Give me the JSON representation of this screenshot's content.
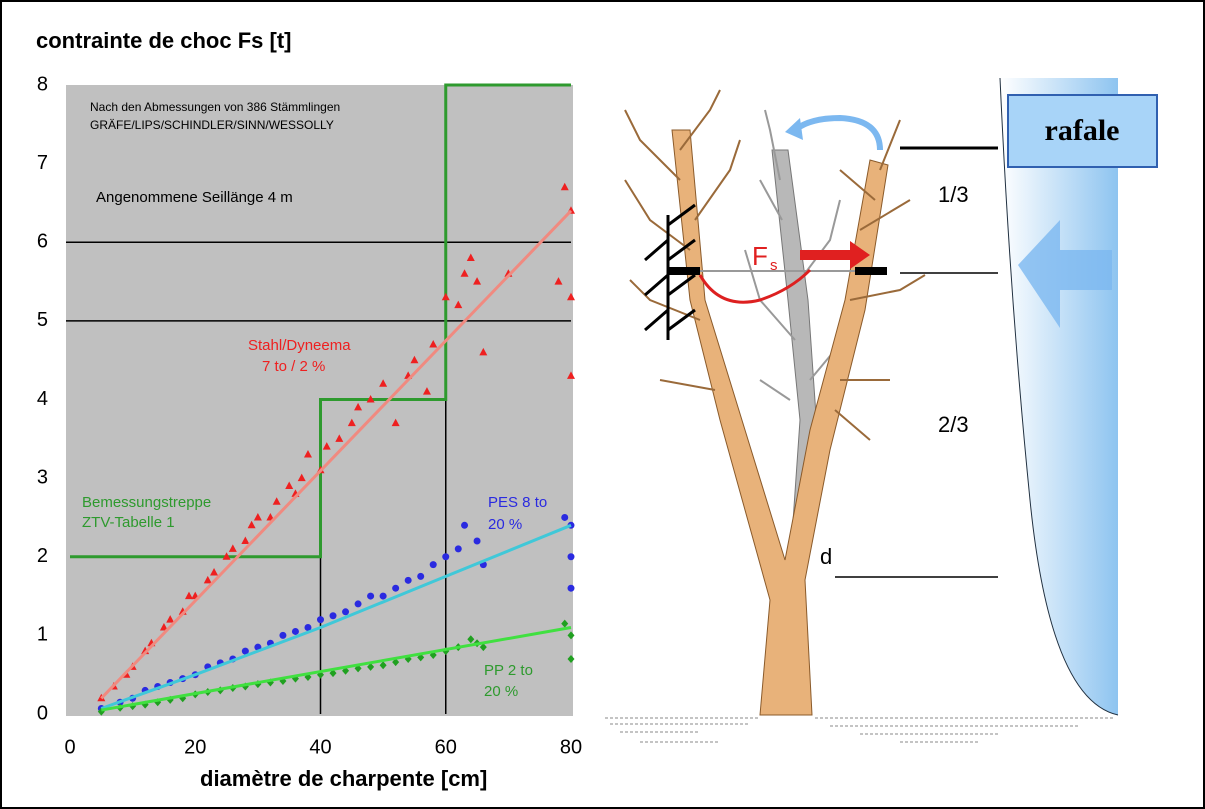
{
  "chart_data": {
    "type": "scatter",
    "title": "contrainte de choc Fs [t]",
    "x_label": "diamètre de charpente [cm]",
    "xlim": [
      0,
      80
    ],
    "xticks": [
      0,
      20,
      40,
      60,
      80
    ],
    "ylim": [
      0,
      8
    ],
    "yticks": [
      0,
      1,
      2,
      3,
      4,
      5,
      6,
      7,
      8
    ],
    "reference_lines": [
      5,
      6
    ],
    "background": "#c0c0c0",
    "series": [
      {
        "color": "#ee2020",
        "marker": "triangle",
        "x": [
          5,
          7,
          9,
          10,
          12,
          13,
          15,
          16,
          18,
          19,
          20,
          22,
          23,
          25,
          26,
          28,
          29,
          30,
          32,
          33,
          35,
          36,
          37,
          38,
          40,
          41,
          43,
          45,
          46,
          48,
          50,
          52,
          54,
          55,
          57,
          58,
          60,
          62,
          63,
          64,
          65,
          66,
          70,
          78,
          79,
          80,
          80,
          80
        ],
        "values": [
          0.2,
          0.35,
          0.5,
          0.6,
          0.8,
          0.9,
          1.1,
          1.2,
          1.3,
          1.5,
          1.5,
          1.7,
          1.8,
          2.0,
          2.1,
          2.2,
          2.4,
          2.5,
          2.5,
          2.7,
          2.9,
          2.8,
          3.0,
          3.3,
          3.1,
          3.4,
          3.5,
          3.7,
          3.9,
          4.0,
          4.2,
          3.7,
          4.3,
          4.5,
          4.1,
          4.7,
          5.3,
          5.2,
          5.6,
          5.8,
          5.5,
          4.6,
          5.6,
          5.5,
          6.7,
          6.4,
          5.3,
          4.3
        ]
      },
      {
        "color": "#2a2ae0",
        "marker": "circle",
        "x": [
          5,
          8,
          10,
          12,
          14,
          16,
          18,
          20,
          22,
          24,
          26,
          28,
          30,
          32,
          34,
          36,
          38,
          40,
          42,
          44,
          46,
          48,
          50,
          52,
          54,
          56,
          58,
          60,
          62,
          63,
          65,
          66,
          79,
          80,
          80,
          80
        ],
        "values": [
          0.07,
          0.15,
          0.2,
          0.3,
          0.35,
          0.4,
          0.45,
          0.5,
          0.6,
          0.65,
          0.7,
          0.8,
          0.85,
          0.9,
          1.0,
          1.05,
          1.1,
          1.2,
          1.25,
          1.3,
          1.4,
          1.5,
          1.5,
          1.6,
          1.7,
          1.75,
          1.9,
          2.0,
          2.1,
          2.4,
          2.2,
          1.9,
          2.5,
          2.4,
          2.0,
          1.6
        ]
      },
      {
        "color": "#20a020",
        "marker": "diamond",
        "x": [
          5,
          8,
          10,
          12,
          14,
          16,
          18,
          20,
          22,
          24,
          26,
          28,
          30,
          32,
          34,
          36,
          38,
          40,
          42,
          44,
          46,
          48,
          50,
          52,
          54,
          56,
          58,
          60,
          62,
          64,
          65,
          66,
          79,
          80,
          80
        ],
        "values": [
          0.03,
          0.08,
          0.1,
          0.12,
          0.15,
          0.18,
          0.2,
          0.25,
          0.28,
          0.3,
          0.33,
          0.35,
          0.38,
          0.4,
          0.42,
          0.45,
          0.47,
          0.5,
          0.52,
          0.55,
          0.58,
          0.6,
          0.62,
          0.66,
          0.7,
          0.72,
          0.75,
          0.8,
          0.85,
          0.95,
          0.9,
          0.85,
          1.15,
          1.0,
          0.7
        ]
      }
    ],
    "trendlines": [
      {
        "color": "#f08a80",
        "x": [
          5,
          80
        ],
        "values": [
          0.2,
          6.4
        ]
      },
      {
        "color": "#40c8d8",
        "x": [
          5,
          20,
          40,
          60,
          80
        ],
        "values": [
          0.07,
          0.5,
          1.1,
          1.75,
          2.4
        ]
      },
      {
        "color": "#40e040",
        "x": [
          5,
          80
        ],
        "values": [
          0.05,
          1.1
        ]
      }
    ],
    "step": {
      "color": "#2e9a2e",
      "x": [
        0,
        40,
        40,
        60,
        60,
        80
      ],
      "values": [
        2,
        2,
        4,
        4,
        8,
        8
      ]
    },
    "annotations": [
      "Nach den Abmessungen von 386 Stämmlingen",
      "GRÄFE/LIPS/SCHINDLER/SINN/WESSOLLY",
      "Angenommene Seillänge 4 m",
      "Stahl/Dyneema",
      "7 to / 2 %",
      "Bemessungstreppe",
      "ZTV-Tabelle 1",
      "PES 8 to",
      "20 %",
      "PP 2 to",
      "20 %"
    ]
  },
  "diagram": {
    "wind_label": "rafale",
    "upper_fraction": "1/3",
    "lower_fraction": "2/3",
    "diameter_label": "d",
    "force_label": "F",
    "force_subscript": "s"
  }
}
